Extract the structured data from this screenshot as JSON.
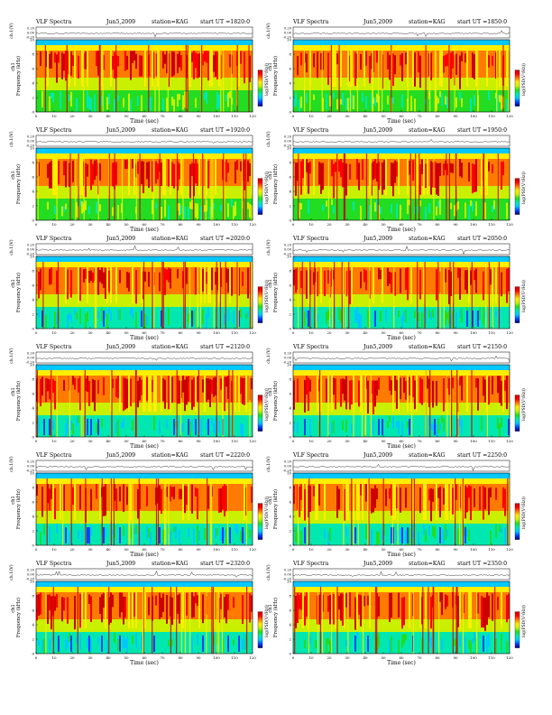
{
  "colors": {
    "scale_stops": [
      "#00007a",
      "#0044ff",
      "#00c8ff",
      "#00e8b0",
      "#22dd22",
      "#c8f000",
      "#ffee00",
      "#ff7a00",
      "#ff0000",
      "#cc0000"
    ],
    "border": "#000000",
    "trace": "#222222"
  },
  "chart_data": [
    {
      "type": "heatmap",
      "header": {
        "left": "VLF Spectra",
        "date": "Jun5,2009",
        "station": "station=KAG",
        "start": "start UT =1820:0"
      },
      "ch1_label": "ch.1(V)",
      "ch1_ticks": [
        "0.20",
        "0.00",
        "-0.20"
      ],
      "ylabel": "Frequency (kHz)",
      "ylabel_ch": "ch1",
      "yticks": [
        "0",
        "2",
        "4",
        "6",
        "8",
        "10"
      ],
      "xlabel": "Time (sec)",
      "xticks": [
        "0",
        "10",
        "20",
        "30",
        "40",
        "50",
        "60",
        "70",
        "80",
        "90",
        "100",
        "110",
        "120"
      ],
      "xlim": [
        0,
        120
      ],
      "ylim": [
        0,
        10
      ],
      "colorbar_label": "log(PSD(V²/Hz))"
    },
    {
      "type": "heatmap",
      "header": {
        "left": "VLF Spectra",
        "date": "Jun5,2009",
        "station": "station=KAG",
        "start": "start UT =1850:0"
      },
      "ch1_label": "ch.1(V)",
      "ch1_ticks": [
        "0.20",
        "0.00",
        "-0.20"
      ],
      "ylabel": "Frequency (kHz)",
      "ylabel_ch": "ch1",
      "yticks": [
        "0",
        "2",
        "4",
        "6",
        "8",
        "10"
      ],
      "xlabel": "Time (sec)",
      "xticks": [
        "0",
        "10",
        "20",
        "30",
        "40",
        "50",
        "60",
        "70",
        "80",
        "90",
        "100",
        "110",
        "120"
      ],
      "xlim": [
        0,
        120
      ],
      "ylim": [
        0,
        10
      ],
      "colorbar_label": "log(PSD(V²/Hz))"
    },
    {
      "type": "heatmap",
      "header": {
        "left": "VLF Spectra",
        "date": "Jun5,2009",
        "station": "station=KAG",
        "start": "start UT =1920:0"
      },
      "ch1_label": "ch.1(V)",
      "ch1_ticks": [
        "0.20",
        "0.00",
        "-0.20"
      ],
      "ylabel": "Frequency (kHz)",
      "ylabel_ch": "ch1",
      "yticks": [
        "0",
        "2",
        "4",
        "6",
        "8",
        "10"
      ],
      "xlabel": "Time (sec)",
      "xticks": [
        "0",
        "10",
        "20",
        "30",
        "40",
        "50",
        "60",
        "70",
        "80",
        "90",
        "100",
        "110",
        "120"
      ],
      "xlim": [
        0,
        120
      ],
      "ylim": [
        0,
        10
      ],
      "colorbar_label": "log(PSD(V²/Hz))"
    },
    {
      "type": "heatmap",
      "header": {
        "left": "VLF Spectra",
        "date": "Jun5,2009",
        "station": "station=KAG",
        "start": "start UT =1950:0"
      },
      "ch1_label": "ch.1(V)",
      "ch1_ticks": [
        "0.20",
        "0.00",
        "-0.20"
      ],
      "ylabel": "Frequency (kHz)",
      "ylabel_ch": "ch1",
      "yticks": [
        "0",
        "2",
        "4",
        "6",
        "8",
        "10"
      ],
      "xlabel": "Time (sec)",
      "xticks": [
        "0",
        "10",
        "20",
        "30",
        "40",
        "50",
        "60",
        "70",
        "80",
        "90",
        "100",
        "110",
        "120"
      ],
      "xlim": [
        0,
        120
      ],
      "ylim": [
        0,
        10
      ],
      "colorbar_label": "log(PSD(V²/Hz))"
    },
    {
      "type": "heatmap",
      "header": {
        "left": "VLF Spectra",
        "date": "Jun5,2009",
        "station": "station=KAG",
        "start": "start UT =2020:0"
      },
      "ch1_label": "ch.1(V)",
      "ch1_ticks": [
        "0.20",
        "0.00",
        "-0.20"
      ],
      "ylabel": "Frequency (kHz)",
      "ylabel_ch": "ch1",
      "yticks": [
        "0",
        "2",
        "4",
        "6",
        "8",
        "10"
      ],
      "xlabel": "Time (sec)",
      "xticks": [
        "0",
        "10",
        "20",
        "30",
        "40",
        "50",
        "60",
        "70",
        "80",
        "90",
        "100",
        "110",
        "120"
      ],
      "xlim": [
        0,
        120
      ],
      "ylim": [
        0,
        10
      ],
      "colorbar_label": "log(PSD(V²/Hz))"
    },
    {
      "type": "heatmap",
      "header": {
        "left": "VLF Spectra",
        "date": "Jun5,2009",
        "station": "station=KAG",
        "start": "start UT =2050:0"
      },
      "ch1_label": "ch.1(V)",
      "ch1_ticks": [
        "0.20",
        "0.00",
        "-0.20"
      ],
      "ylabel": "Frequency (kHz)",
      "ylabel_ch": "ch1",
      "yticks": [
        "0",
        "2",
        "4",
        "6",
        "8",
        "10"
      ],
      "xlabel": "Time (sec)",
      "xticks": [
        "0",
        "10",
        "20",
        "30",
        "40",
        "50",
        "60",
        "70",
        "80",
        "90",
        "100",
        "110",
        "120"
      ],
      "xlim": [
        0,
        120
      ],
      "ylim": [
        0,
        10
      ],
      "colorbar_label": "log(PSD(V²/Hz))"
    },
    {
      "type": "heatmap",
      "header": {
        "left": "VLF Spectra",
        "date": "Jun5,2009",
        "station": "station=KAG",
        "start": "start UT =2120:0"
      },
      "ch1_label": "ch.1(V)",
      "ch1_ticks": [
        "0.20",
        "0.00",
        "-0.20"
      ],
      "ylabel": "Frequency (kHz)",
      "ylabel_ch": "ch1",
      "yticks": [
        "0",
        "2",
        "4",
        "6",
        "8",
        "10"
      ],
      "xlabel": "Time (sec)",
      "xticks": [
        "0",
        "10",
        "20",
        "30",
        "40",
        "50",
        "60",
        "70",
        "80",
        "90",
        "100",
        "110",
        "120"
      ],
      "xlim": [
        0,
        120
      ],
      "ylim": [
        0,
        10
      ],
      "colorbar_label": "log(PSD(V²/Hz))"
    },
    {
      "type": "heatmap",
      "header": {
        "left": "VLF Spectra",
        "date": "Jun5,2009",
        "station": "station=KAG",
        "start": "start UT =2150:0"
      },
      "ch1_label": "ch.1(V)",
      "ch1_ticks": [
        "0.20",
        "0.00",
        "-0.20"
      ],
      "ylabel": "Frequency (kHz)",
      "ylabel_ch": "ch1",
      "yticks": [
        "0",
        "2",
        "4",
        "6",
        "8",
        "10"
      ],
      "xlabel": "Time (sec)",
      "xticks": [
        "0",
        "10",
        "20",
        "30",
        "40",
        "50",
        "60",
        "70",
        "80",
        "90",
        "100",
        "110",
        "120"
      ],
      "xlim": [
        0,
        120
      ],
      "ylim": [
        0,
        10
      ],
      "colorbar_label": "log(PSD(V²/Hz))"
    },
    {
      "type": "heatmap",
      "header": {
        "left": "VLF Spectra",
        "date": "Jun5,2009",
        "station": "station=KAG",
        "start": "start UT =2220:0"
      },
      "ch1_label": "ch.1(V)",
      "ch1_ticks": [
        "0.20",
        "0.00",
        "-0.20"
      ],
      "ylabel": "Frequency (kHz)",
      "ylabel_ch": "ch1",
      "yticks": [
        "0",
        "2",
        "4",
        "6",
        "8",
        "10"
      ],
      "xlabel": "Time (sec)",
      "xticks": [
        "0",
        "10",
        "20",
        "30",
        "40",
        "50",
        "60",
        "70",
        "80",
        "90",
        "100",
        "110",
        "120"
      ],
      "xlim": [
        0,
        120
      ],
      "ylim": [
        0,
        10
      ],
      "colorbar_label": "log(PSD(V²/Hz))"
    },
    {
      "type": "heatmap",
      "header": {
        "left": "VLF Spectra",
        "date": "Jun5,2009",
        "station": "station=KAG",
        "start": "start UT =2250:0"
      },
      "ch1_label": "ch.1(V)",
      "ch1_ticks": [
        "0.20",
        "0.00",
        "-0.20"
      ],
      "ylabel": "Frequency (kHz)",
      "ylabel_ch": "ch1",
      "yticks": [
        "0",
        "2",
        "4",
        "6",
        "8",
        "10"
      ],
      "xlabel": "Time (sec)",
      "xticks": [
        "0",
        "10",
        "20",
        "30",
        "40",
        "50",
        "60",
        "70",
        "80",
        "90",
        "100",
        "110",
        "120"
      ],
      "xlim": [
        0,
        120
      ],
      "ylim": [
        0,
        10
      ],
      "colorbar_label": "log(PSD(V²/Hz))"
    },
    {
      "type": "heatmap",
      "header": {
        "left": "VLF Spectra",
        "date": "Jun5,2009",
        "station": "station=KAG",
        "start": "start UT =2320:0"
      },
      "ch1_label": "ch.1(V)",
      "ch1_ticks": [
        "0.20",
        "0.00",
        "-0.20"
      ],
      "ylabel": "Frequency (kHz)",
      "ylabel_ch": "ch1",
      "yticks": [
        "0",
        "2",
        "4",
        "6",
        "8",
        "10"
      ],
      "xlabel": "Time (sec)",
      "xticks": [
        "0",
        "10",
        "20",
        "30",
        "40",
        "50",
        "60",
        "70",
        "80",
        "90",
        "100",
        "110",
        "120"
      ],
      "xlim": [
        0,
        120
      ],
      "ylim": [
        0,
        10
      ],
      "colorbar_label": "log(PSD(V²/Hz))"
    },
    {
      "type": "heatmap",
      "header": {
        "left": "VLF Spectra",
        "date": "Jun5,2009",
        "station": "station=KAG",
        "start": "start UT =2350:0"
      },
      "ch1_label": "ch.1(V)",
      "ch1_ticks": [
        "0.20",
        "0.00",
        "-0.20"
      ],
      "ylabel": "Frequency (kHz)",
      "ylabel_ch": "ch1",
      "yticks": [
        "0",
        "2",
        "4",
        "6",
        "8",
        "10"
      ],
      "xlabel": "Time (sec)",
      "xticks": [
        "0",
        "10",
        "20",
        "30",
        "40",
        "50",
        "60",
        "70",
        "80",
        "90",
        "100",
        "110",
        "120"
      ],
      "xlim": [
        0,
        120
      ],
      "ylim": [
        0,
        10
      ],
      "colorbar_label": "log(PSD(V²/Hz))"
    }
  ]
}
